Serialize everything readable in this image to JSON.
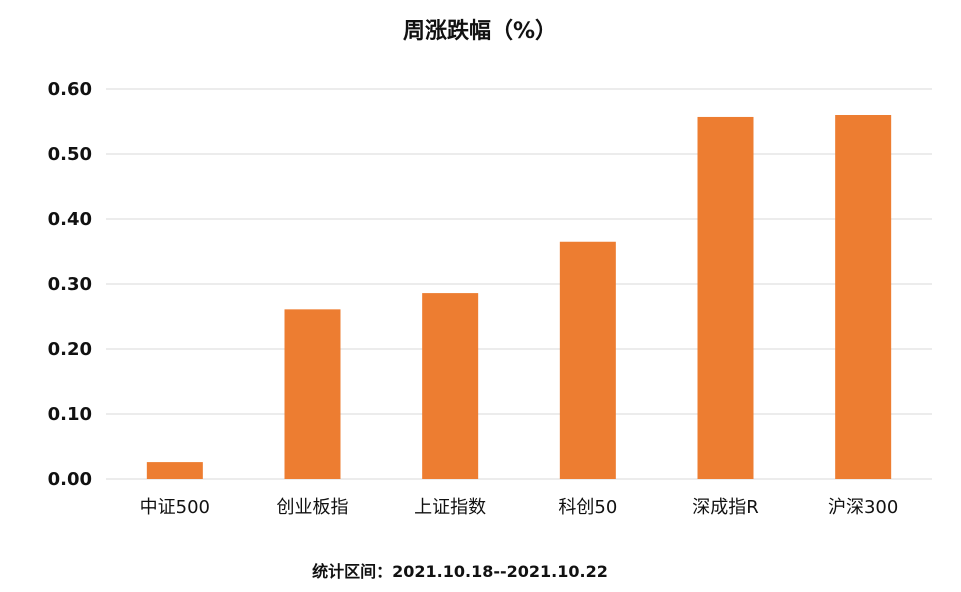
{
  "chart_data": {
    "type": "bar",
    "title": "周涨跌幅（%）",
    "categories": [
      "中证500",
      "创业板指",
      "上证指数",
      "科创50",
      "深成指R",
      "沪深300"
    ],
    "values": [
      0.026,
      0.261,
      0.286,
      0.365,
      0.557,
      0.56
    ],
    "ylim": [
      0,
      0.6
    ],
    "yticks": [
      "0.00",
      "0.10",
      "0.20",
      "0.30",
      "0.40",
      "0.50",
      "0.60"
    ],
    "grid": true,
    "bar_color": "#ED7D31",
    "gridline_color": "#D9D9D9",
    "footer": "统计区间：2021.10.18--2021.10.22"
  }
}
